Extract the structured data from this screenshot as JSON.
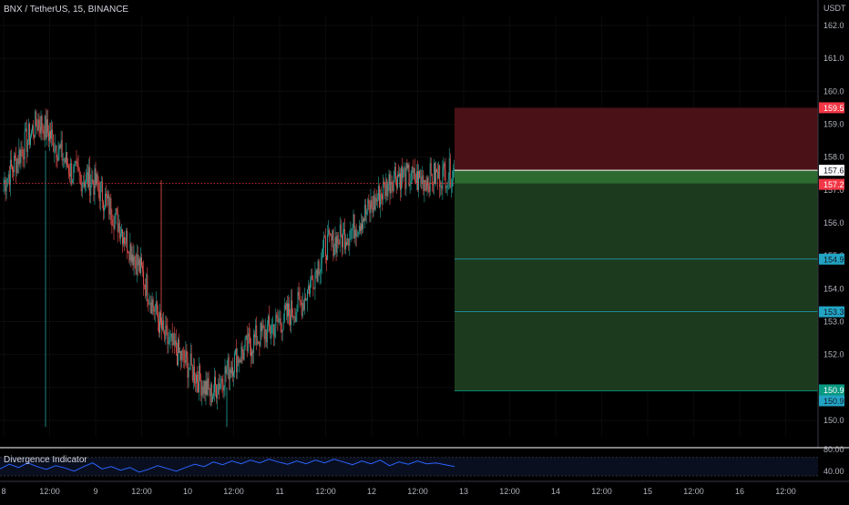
{
  "header": {
    "symbol_line": "BNX / TetherUS, 15, BINANCE"
  },
  "price_axis": {
    "unit": "USDT",
    "ticks": [
      "162.0",
      "161.0",
      "160.0",
      "159.0",
      "158.0",
      "157.0",
      "156.0",
      "155.0",
      "154.0",
      "153.0",
      "152.0",
      "151.0",
      "150.0"
    ]
  },
  "time_axis": {
    "ticks": [
      "8",
      "12:00",
      "9",
      "12:00",
      "10",
      "12:00",
      "11",
      "12:00",
      "12",
      "12:00",
      "13",
      "12:00",
      "14",
      "12:00",
      "15",
      "12:00",
      "16",
      "12:00"
    ]
  },
  "indicator": {
    "name": "Divergence Indicator",
    "ticks": [
      "80.00",
      "40.00"
    ],
    "color": "#2962ff"
  },
  "position_tool": {
    "stop": "159.5",
    "entry": "157.6",
    "last": "157.2",
    "targets": [
      "154.9",
      "153.3"
    ],
    "final_target": "150.9",
    "final_target_alt": "150.9",
    "stop_color": "#4a1116",
    "profit_color": "#1c3a1d",
    "stop_label_color": "#f23645",
    "target_label_color": "#089981",
    "tp_label_color": "#22a4c4"
  },
  "chart_data": {
    "type": "candlestick",
    "title": "BNX / TetherUS, 15, BINANCE",
    "ylabel": "USDT",
    "ylim": [
      149.7,
      162.3
    ],
    "x_categories": [
      "8",
      "12:00",
      "9",
      "12:00",
      "10",
      "12:00",
      "11",
      "12:00",
      "12",
      "12:00",
      "13"
    ],
    "price_path": [
      {
        "t": "8",
        "close": 157.2
      },
      {
        "t": "8 06:00",
        "close": 158.5
      },
      {
        "t": "8 09:00",
        "close": 159.1
      },
      {
        "t": "8 12:00",
        "close": 158.7
      },
      {
        "t": "8 18:00",
        "close": 157.5
      },
      {
        "t": "9",
        "close": 157.2
      },
      {
        "t": "9 06:00",
        "close": 156.0
      },
      {
        "t": "9 12:00",
        "close": 154.5
      },
      {
        "t": "9 18:00",
        "close": 152.5
      },
      {
        "t": "10",
        "close": 151.7
      },
      {
        "t": "10 06:00",
        "close": 150.8
      },
      {
        "t": "10 12:00",
        "close": 151.8
      },
      {
        "t": "10 18:00",
        "close": 152.5
      },
      {
        "t": "11",
        "close": 153.0
      },
      {
        "t": "11 06:00",
        "close": 153.6
      },
      {
        "t": "11 12:00",
        "close": 155.3
      },
      {
        "t": "11 18:00",
        "close": 155.7
      },
      {
        "t": "12",
        "close": 156.5
      },
      {
        "t": "12 06:00",
        "close": 157.5
      },
      {
        "t": "12 12:00",
        "close": 157.3
      },
      {
        "t": "12 21:00",
        "close": 157.6
      }
    ],
    "indicator_series": {
      "name": "Divergence Indicator",
      "ylim": [
        20,
        85
      ],
      "values": [
        45,
        55,
        48,
        58,
        50,
        44,
        52,
        47,
        40,
        50,
        58,
        45,
        50,
        42,
        48,
        38,
        44,
        52,
        46,
        40,
        48,
        55,
        50,
        60,
        54,
        62,
        56,
        64,
        58,
        66,
        60,
        55,
        62,
        56,
        64,
        58,
        66,
        60,
        54,
        62,
        56,
        64,
        52,
        60,
        55,
        62,
        56,
        58,
        54,
        50
      ]
    }
  }
}
